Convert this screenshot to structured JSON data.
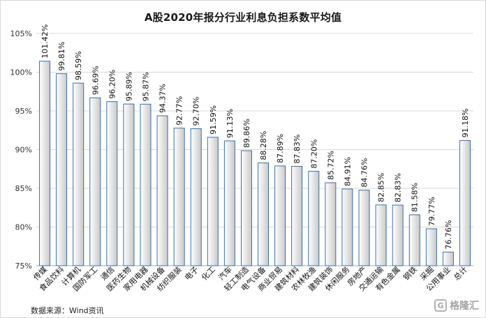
{
  "chart_data": {
    "type": "bar",
    "title": "A股2020年报分行业利息负担系数平均值",
    "xlabel": "",
    "ylabel": "",
    "ylim": [
      75,
      105
    ],
    "yticks": [
      "75%",
      "80%",
      "85%",
      "90%",
      "95%",
      "100%",
      "105%"
    ],
    "grid": true,
    "categories": [
      "传媒",
      "食品饮料",
      "计算机",
      "国防军工",
      "通信",
      "医药生物",
      "家用电器",
      "机械设备",
      "纺织服装",
      "电子",
      "化工",
      "汽车",
      "轻工制造",
      "电气设备",
      "商业贸易",
      "建筑材料",
      "农林牧渔",
      "建筑装饰",
      "休闲服务",
      "房地产",
      "交通运输",
      "有色金属",
      "钢铁",
      "采掘",
      "公用事业",
      "总计"
    ],
    "values": [
      101.42,
      99.81,
      98.59,
      96.69,
      96.2,
      95.89,
      95.87,
      94.37,
      92.77,
      92.7,
      91.59,
      91.13,
      89.86,
      88.28,
      87.89,
      87.83,
      87.2,
      85.72,
      84.91,
      84.76,
      82.85,
      82.83,
      81.58,
      79.77,
      76.76,
      91.18
    ],
    "value_labels": [
      "101.42%",
      "99.81%",
      "98.59%",
      "96.69%",
      "96.20%",
      "95.89%",
      "95.87%",
      "94.37%",
      "92.77%",
      "92.70%",
      "91.59%",
      "91.13%",
      "89.86%",
      "88.28%",
      "87.89%",
      "87.83%",
      "87.20%",
      "85.72%",
      "84.91%",
      "84.76%",
      "82.85%",
      "82.83%",
      "81.58%",
      "79.77%",
      "76.76%",
      "91.18%"
    ],
    "colors": {
      "bar_fill_light": "#ffffff",
      "bar_fill_dark": "#c9c9c9",
      "bar_stroke": "#3b6fa8",
      "grid": "#d9d9d9",
      "axis": "#a6a6a6"
    }
  },
  "source_note": "数据来源：Wind资讯",
  "watermark": {
    "icon": "gelonghui-logo-icon",
    "text": "格隆汇"
  }
}
